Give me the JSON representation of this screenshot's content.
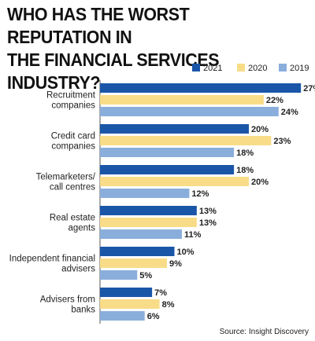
{
  "title_lines": [
    "WHO HAS THE WORST REPUTATION IN",
    "THE FINANCIAL SERVICES INDUSTRY?"
  ],
  "source": "Source: Insight Discovery",
  "colors": {
    "2021": "#1a56a8",
    "2020": "#f9dc88",
    "2019": "#8aaedc",
    "axis": "#555555"
  },
  "chart_data": {
    "type": "bar",
    "orientation": "horizontal",
    "categories": [
      [
        "Recruitment",
        "companies"
      ],
      [
        "Credit card",
        "companies"
      ],
      [
        "Telemarketers/",
        "call centres"
      ],
      [
        "Real estate",
        "agents"
      ],
      [
        "Independent financial",
        "advisers"
      ],
      [
        "Advisers from",
        "banks"
      ]
    ],
    "series": [
      {
        "name": "2021",
        "values": [
          27,
          20,
          18,
          13,
          10,
          7
        ]
      },
      {
        "name": "2020",
        "values": [
          22,
          23,
          20,
          13,
          9,
          8
        ]
      },
      {
        "name": "2019",
        "values": [
          24,
          18,
          12,
          11,
          5,
          6
        ]
      }
    ],
    "value_suffix": "%",
    "xlim": [
      0,
      28
    ],
    "legend_position": "top-right",
    "grid": false,
    "data_labels": true
  }
}
